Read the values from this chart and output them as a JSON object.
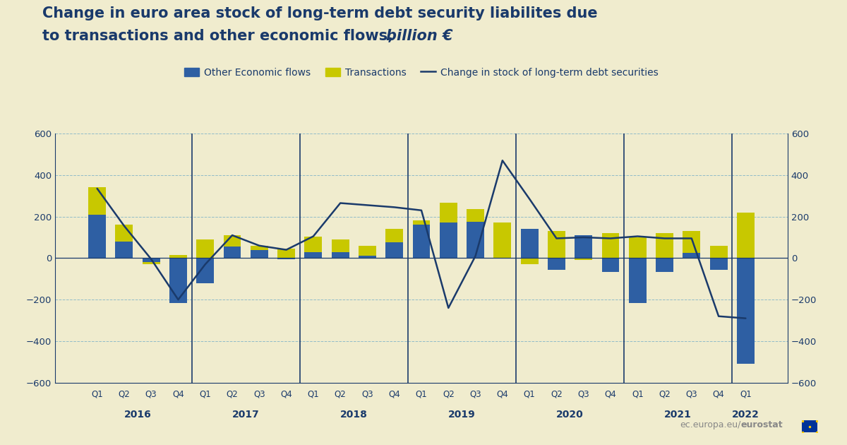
{
  "labels": [
    "Q1",
    "Q2",
    "Q3",
    "Q4",
    "Q1",
    "Q2",
    "Q3",
    "Q4",
    "Q1",
    "Q2",
    "Q3",
    "Q4",
    "Q1",
    "Q2",
    "Q3",
    "Q4",
    "Q1",
    "Q2",
    "Q3",
    "Q4",
    "Q1",
    "Q2",
    "Q3",
    "Q4",
    "Q1"
  ],
  "years": [
    "2016",
    "2017",
    "2018",
    "2019",
    "2020",
    "2021",
    "2022"
  ],
  "year_positions": [
    1.5,
    5.5,
    9.5,
    13.5,
    17.5,
    21.5,
    24
  ],
  "blue_bars": [
    210,
    80,
    -20,
    -215,
    -120,
    55,
    40,
    -5,
    30,
    30,
    10,
    75,
    160,
    170,
    175,
    0,
    140,
    -55,
    110,
    -65,
    -215,
    -65,
    25,
    -55,
    -510
  ],
  "yellow_bars": [
    130,
    80,
    -10,
    15,
    90,
    55,
    20,
    45,
    75,
    60,
    50,
    65,
    20,
    95,
    60,
    170,
    -30,
    130,
    -10,
    120,
    100,
    120,
    105,
    60,
    220
  ],
  "line_values": [
    335,
    155,
    -5,
    -200,
    -30,
    110,
    60,
    40,
    105,
    265,
    255,
    245,
    230,
    -240,
    10,
    470,
    285,
    95,
    100,
    95,
    105,
    95,
    95,
    -280,
    -290
  ],
  "bg_color": "#f0ecce",
  "bar_blue": "#2e5fa3",
  "bar_yellow": "#c8c800",
  "line_color": "#1a3a6b",
  "grid_color": "#7ab0c8",
  "axis_color": "#1a3a6b",
  "year_sep_color": "#1a3a6b",
  "ylim": [
    -600,
    600
  ],
  "yticks": [
    -600,
    -400,
    -200,
    0,
    200,
    400,
    600
  ],
  "title_line1": "Change in euro area stock of long-term debt security liabilites due",
  "title_line2": "to transactions and other economic flows, ",
  "title_italic": "billion €",
  "legend_blue": "Other Economic flows",
  "legend_yellow": "Transactions",
  "legend_line": "Change in stock of long-term debt securities",
  "watermark_normal": "ec.europa.eu/",
  "watermark_bold": "eurostat"
}
